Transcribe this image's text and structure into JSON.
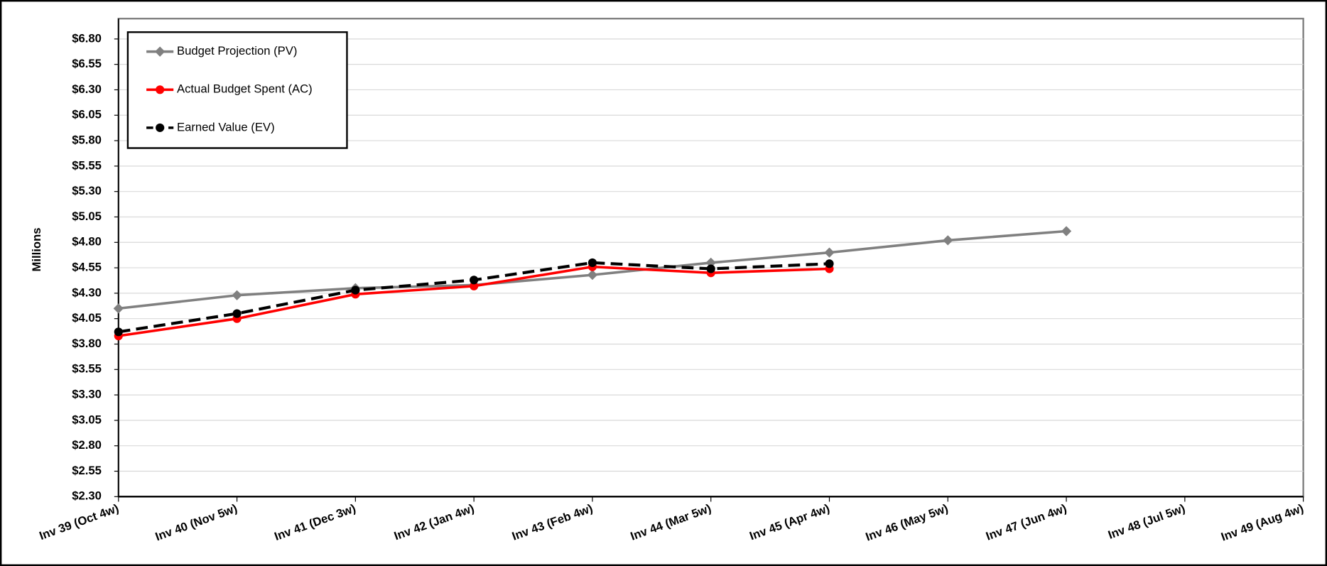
{
  "chart_data": {
    "type": "line",
    "y_label": "Millions",
    "categories": [
      "Inv 39 (Oct 4w)",
      "Inv 40 (Nov 5w)",
      "Inv 41 (Dec 3w)",
      "Inv 42 (Jan 4w)",
      "Inv 43 (Feb 4w)",
      "Inv 44 (Mar 5w)",
      "Inv 45 (Apr 4w)",
      "Inv 46 (May 5w)",
      "Inv 47 (Jun 4w)",
      "Inv 48 (Jul 5w)",
      "Inv 49 (Aug 4w)"
    ],
    "series": [
      {
        "name": "Budget Projection (PV)",
        "color": "#808080",
        "marker": "diamond",
        "dash": false,
        "values": [
          4.15,
          4.28,
          4.35,
          4.38,
          4.48,
          4.6,
          4.7,
          4.82,
          4.91,
          null,
          null
        ]
      },
      {
        "name": "Actual Budget Spent (AC)",
        "color": "#ff0000",
        "marker": "circle",
        "dash": false,
        "values": [
          3.88,
          4.05,
          4.29,
          4.37,
          4.56,
          4.5,
          4.54,
          null,
          null,
          null,
          null
        ]
      },
      {
        "name": "Earned Value (EV)",
        "color": "#000000",
        "marker": "circle",
        "dash": true,
        "values": [
          3.92,
          4.1,
          4.33,
          4.43,
          4.6,
          4.54,
          4.59,
          null,
          null,
          null,
          null
        ]
      }
    ],
    "ylim": [
      2.3,
      7.0
    ],
    "yticks": [
      {
        "value": 2.3,
        "label": "$2.30"
      },
      {
        "value": 2.55,
        "label": "$2.55"
      },
      {
        "value": 2.8,
        "label": "$2.80"
      },
      {
        "value": 3.05,
        "label": "$3.05"
      },
      {
        "value": 3.3,
        "label": "$3.30"
      },
      {
        "value": 3.55,
        "label": "$3.55"
      },
      {
        "value": 3.8,
        "label": "$3.80"
      },
      {
        "value": 4.05,
        "label": "$4.05"
      },
      {
        "value": 4.3,
        "label": "$4.30"
      },
      {
        "value": 4.55,
        "label": "$4.55"
      },
      {
        "value": 4.8,
        "label": "$4.80"
      },
      {
        "value": 5.05,
        "label": "$5.05"
      },
      {
        "value": 5.3,
        "label": "$5.30"
      },
      {
        "value": 5.55,
        "label": "$5.55"
      },
      {
        "value": 5.8,
        "label": "$5.80"
      },
      {
        "value": 6.05,
        "label": "$6.05"
      },
      {
        "value": 6.3,
        "label": "$6.30"
      },
      {
        "value": 6.55,
        "label": "$6.55"
      },
      {
        "value": 6.8,
        "label": "$6.80"
      }
    ],
    "grid": true,
    "legend": "top-left"
  }
}
